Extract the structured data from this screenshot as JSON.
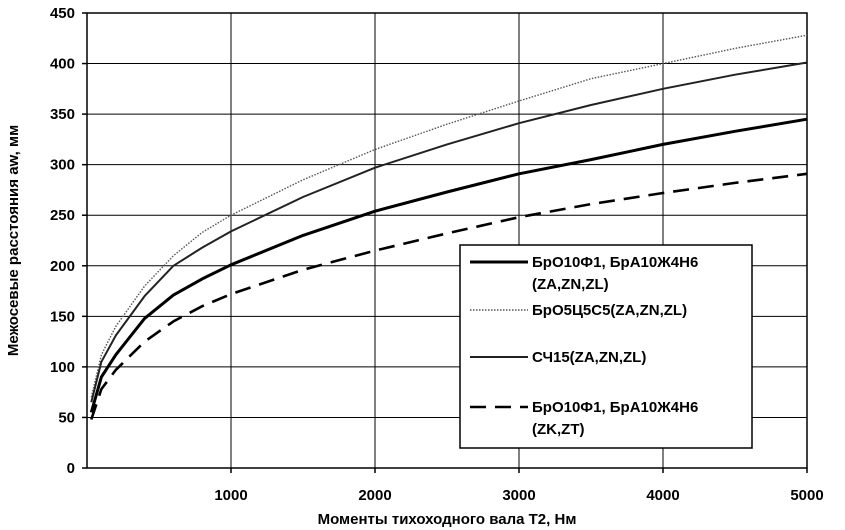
{
  "chart_data": {
    "type": "line",
    "title": "",
    "xlabel": "Моменты тихоходного вала T2, Нм",
    "ylabel": "Межосевые расстояния aw, мм",
    "xlim": [
      0,
      5000
    ],
    "ylim": [
      0,
      450
    ],
    "x_ticks": [
      1000,
      2000,
      3000,
      4000,
      5000
    ],
    "y_ticks": [
      0,
      50,
      100,
      150,
      200,
      250,
      300,
      350,
      400,
      450
    ],
    "grid": true,
    "legend_position": "center-right",
    "x": [
      30,
      100,
      200,
      400,
      600,
      800,
      1000,
      1500,
      2000,
      2500,
      3000,
      3500,
      4000,
      4500,
      5000
    ],
    "series": [
      {
        "name_lines": [
          "БрО10Ф1, БрА10Ж4Н6",
          "(ZA,ZN,ZL)"
        ],
        "style": "solid-thick",
        "color": "#000000",
        "values": [
          55,
          90,
          112,
          148,
          171,
          187,
          201,
          230,
          254,
          273,
          291,
          305,
          320,
          333,
          345
        ]
      },
      {
        "name_lines": [
          "БрО5Ц5С5(ZA,ZN,ZL)"
        ],
        "style": "dotted-thin",
        "color": "#555555",
        "values": [
          70,
          112,
          140,
          180,
          210,
          233,
          250,
          285,
          315,
          340,
          363,
          385,
          400,
          415,
          428
        ]
      },
      {
        "name_lines": [
          "СЧ15(ZA,ZN,ZL)"
        ],
        "style": "solid-medium",
        "color": "#222222",
        "values": [
          65,
          105,
          131,
          170,
          200,
          218,
          234,
          268,
          297,
          320,
          341,
          359,
          375,
          389,
          401
        ]
      },
      {
        "name_lines": [
          "БрО10Ф1, БрА10Ж4Н6",
          "(ZK,ZT)"
        ],
        "style": "dashed-thick",
        "color": "#000000",
        "values": [
          48,
          78,
          97,
          125,
          145,
          160,
          172,
          196,
          215,
          232,
          248,
          261,
          272,
          282,
          291
        ]
      }
    ]
  }
}
